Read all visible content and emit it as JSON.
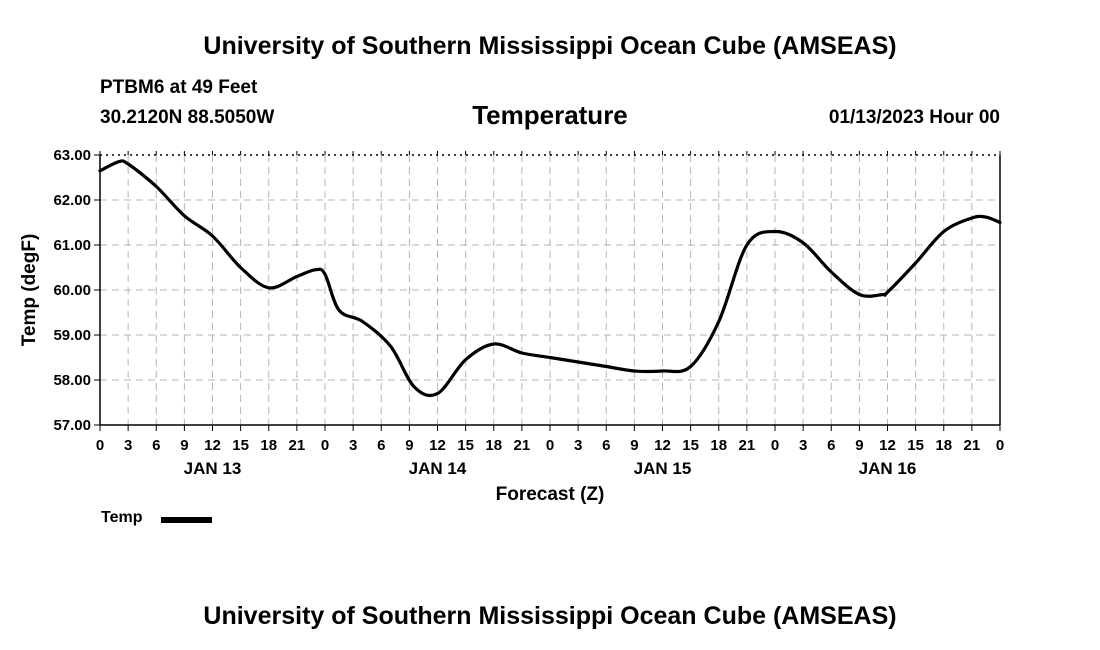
{
  "header": {
    "title": "University of Southern Mississippi Ocean Cube (AMSEAS)",
    "station": "PTBM6 at 49 Feet",
    "coords": "30.2120N  88.5050W",
    "chart_title": "Temperature",
    "forecast_time": "01/13/2023 Hour 00"
  },
  "footer": {
    "title": "University of Southern Mississippi Ocean Cube (AMSEAS)"
  },
  "legend": {
    "label": "Temp"
  },
  "chart_data": {
    "type": "line",
    "title": "Temperature",
    "xlabel": "Forecast (Z)",
    "ylabel": "Temp (degF)",
    "ylim": [
      57,
      63
    ],
    "xlim": [
      0,
      96
    ],
    "y_ticks": [
      "57.00",
      "58.00",
      "59.00",
      "60.00",
      "61.00",
      "62.00",
      "63.00"
    ],
    "x_ticks": [
      "0",
      "3",
      "6",
      "9",
      "12",
      "15",
      "18",
      "21",
      "0",
      "3",
      "6",
      "9",
      "12",
      "15",
      "18",
      "21",
      "0",
      "3",
      "6",
      "9",
      "12",
      "15",
      "18",
      "21",
      "0",
      "3",
      "6",
      "9",
      "12",
      "15",
      "18",
      "21",
      "0"
    ],
    "day_labels": [
      {
        "label": "JAN 13",
        "x_hour": 12
      },
      {
        "label": "JAN 14",
        "x_hour": 36
      },
      {
        "label": "JAN 15",
        "x_hour": 60
      },
      {
        "label": "JAN 16",
        "x_hour": 84
      }
    ],
    "grid": true,
    "series": [
      {
        "name": "Temp",
        "color": "#000000",
        "x": [
          0,
          2,
          3,
          6,
          9,
          12,
          15,
          18,
          21,
          23,
          24,
          25.5,
          28,
          31,
          33.5,
          36,
          39,
          42,
          45,
          48,
          51,
          54,
          57,
          60,
          63,
          66,
          69,
          72,
          75,
          78,
          81,
          83.5,
          84,
          87,
          90,
          93,
          94.5,
          96
        ],
        "values": [
          62.65,
          62.85,
          62.8,
          62.3,
          61.65,
          61.2,
          60.5,
          60.05,
          60.3,
          60.45,
          60.35,
          59.55,
          59.3,
          58.75,
          57.85,
          57.7,
          58.45,
          58.8,
          58.6,
          58.5,
          58.4,
          58.3,
          58.2,
          58.2,
          58.3,
          59.3,
          61.0,
          61.3,
          61.05,
          60.4,
          59.9,
          59.9,
          59.95,
          60.6,
          61.3,
          61.6,
          61.62,
          61.5
        ]
      }
    ]
  }
}
